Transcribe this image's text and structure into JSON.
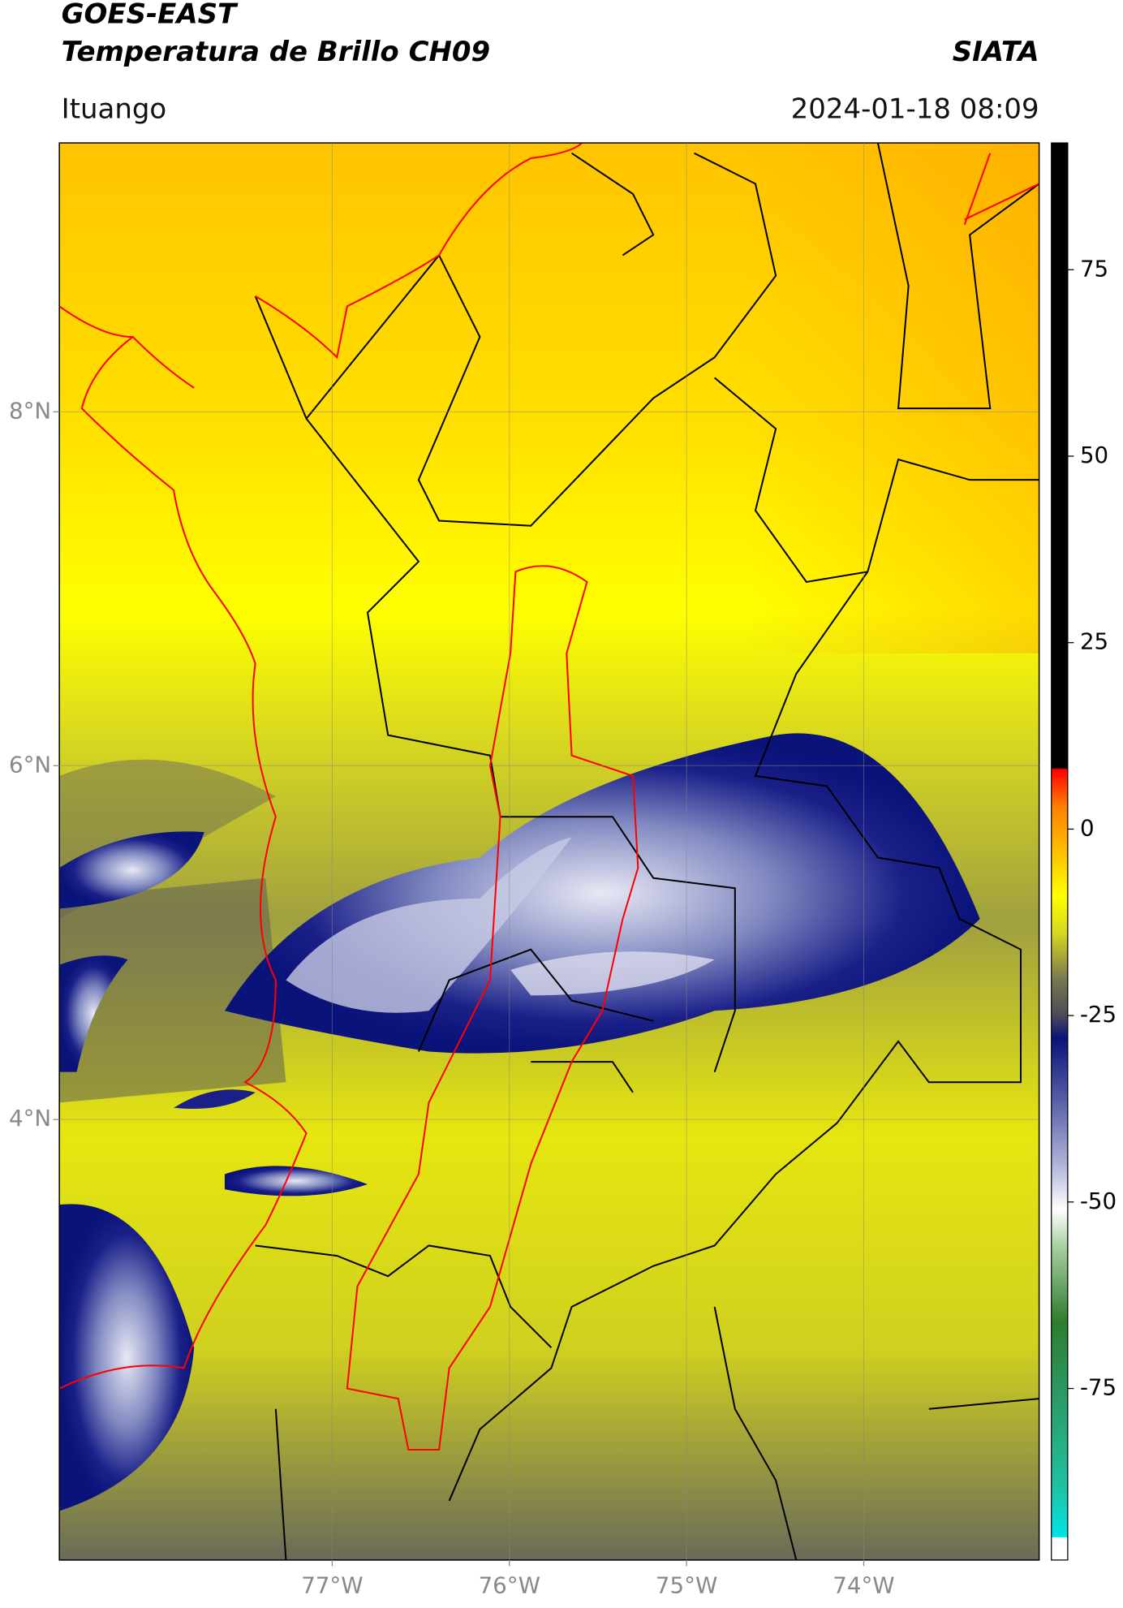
{
  "header": {
    "title": "GOES-EAST",
    "subtitle": "Temperatura de Brillo CH09",
    "brand": "SIATA",
    "location": "Ituango",
    "datetime": "2024-01-18 08:09"
  },
  "map": {
    "xlim": [
      -78.54,
      -73.01
    ],
    "ylim": [
      1.51,
      9.52
    ],
    "xticks": [
      {
        "value": -77,
        "label": "77°W"
      },
      {
        "value": -76,
        "label": "76°W"
      },
      {
        "value": -75,
        "label": "75°W"
      },
      {
        "value": -74,
        "label": "74°W"
      }
    ],
    "yticks": [
      {
        "value": 8,
        "label": "8°N"
      },
      {
        "value": 6,
        "label": "6°N"
      },
      {
        "value": 4,
        "label": "4°N"
      }
    ],
    "grid": true
  },
  "colorbar": {
    "lim": [
      -98,
      92
    ],
    "ticks": [
      75,
      50,
      25,
      0,
      -25,
      -50,
      -75
    ],
    "colormap": [
      {
        "value": -98,
        "color": "#ffffff"
      },
      {
        "value": -95,
        "color": "#ffffff"
      },
      {
        "value": -94.9,
        "color": "#00e5e5"
      },
      {
        "value": -88,
        "color": "#20c0a0"
      },
      {
        "value": -78,
        "color": "#2aa070"
      },
      {
        "value": -66,
        "color": "#2e7d2e"
      },
      {
        "value": -56,
        "color": "#a8d0a0"
      },
      {
        "value": -51,
        "color": "#ffffff"
      },
      {
        "value": -45,
        "color": "#b0b4d8"
      },
      {
        "value": -35,
        "color": "#4a52a0"
      },
      {
        "value": -28,
        "color": "#0a137a"
      },
      {
        "value": -25,
        "color": "#4a4a5a"
      },
      {
        "value": -20,
        "color": "#7a7a50"
      },
      {
        "value": -14,
        "color": "#d6d620"
      },
      {
        "value": -9,
        "color": "#ffff00"
      },
      {
        "value": -3,
        "color": "#ffc000"
      },
      {
        "value": 3,
        "color": "#ff8000"
      },
      {
        "value": 8,
        "color": "#ff0000"
      },
      {
        "value": 8.2,
        "color": "#000000"
      },
      {
        "value": 92,
        "color": "#000000"
      }
    ]
  }
}
